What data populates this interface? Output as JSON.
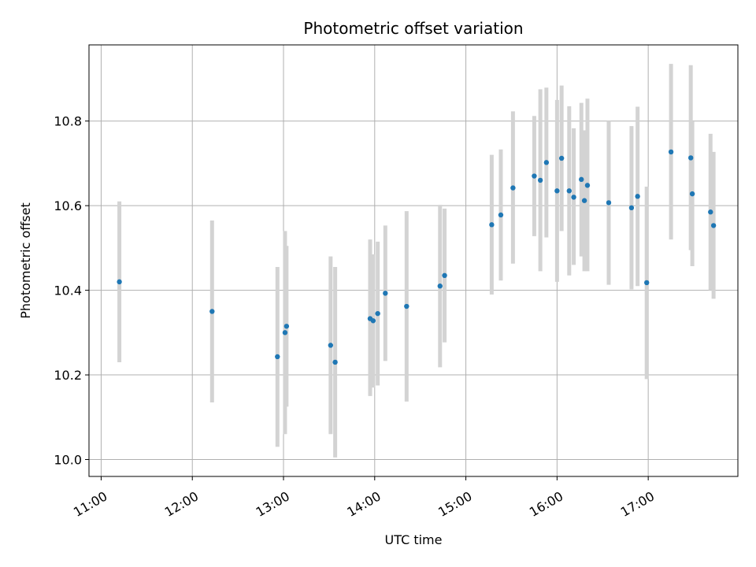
{
  "chart_data": {
    "type": "scatter",
    "title": "Photometric offset variation",
    "xlabel": "UTC time",
    "ylabel": "Photometric offset",
    "x_unit": "time of day (HH:MM, UTC)",
    "xlim": [
      "10:52",
      "17:59"
    ],
    "ylim": [
      9.96,
      10.98
    ],
    "grid": true,
    "x_ticks": [
      "11:00",
      "12:00",
      "13:00",
      "14:00",
      "15:00",
      "16:00",
      "17:00"
    ],
    "y_ticks": [
      10.0,
      10.2,
      10.4,
      10.6,
      10.8
    ],
    "y_tick_labels": [
      "10.0",
      "10.2",
      "10.4",
      "10.6",
      "10.8"
    ],
    "marker_color": "#1f77b4",
    "errorbar_color": "#d3d3d3",
    "points": [
      {
        "x": "11:12",
        "y": 10.42,
        "ylo": 10.23,
        "yhi": 10.61
      },
      {
        "x": "12:13",
        "y": 10.35,
        "ylo": 10.135,
        "yhi": 10.565
      },
      {
        "x": "12:56",
        "y": 10.243,
        "ylo": 10.03,
        "yhi": 10.455
      },
      {
        "x": "13:01",
        "y": 10.3,
        "ylo": 10.06,
        "yhi": 10.54
      },
      {
        "x": "13:02",
        "y": 10.315,
        "ylo": 10.125,
        "yhi": 10.505
      },
      {
        "x": "13:31",
        "y": 10.27,
        "ylo": 10.06,
        "yhi": 10.48
      },
      {
        "x": "13:34",
        "y": 10.23,
        "ylo": 10.005,
        "yhi": 10.455
      },
      {
        "x": "13:57",
        "y": 10.333,
        "ylo": 10.15,
        "yhi": 10.52
      },
      {
        "x": "13:59",
        "y": 10.328,
        "ylo": 10.17,
        "yhi": 10.485
      },
      {
        "x": "14:02",
        "y": 10.345,
        "ylo": 10.175,
        "yhi": 10.515
      },
      {
        "x": "14:07",
        "y": 10.393,
        "ylo": 10.233,
        "yhi": 10.553
      },
      {
        "x": "14:21",
        "y": 10.362,
        "ylo": 10.137,
        "yhi": 10.587
      },
      {
        "x": "14:43",
        "y": 10.41,
        "ylo": 10.218,
        "yhi": 10.602
      },
      {
        "x": "14:46",
        "y": 10.435,
        "ylo": 10.277,
        "yhi": 10.593
      },
      {
        "x": "15:17",
        "y": 10.555,
        "ylo": 10.39,
        "yhi": 10.72
      },
      {
        "x": "15:23",
        "y": 10.578,
        "ylo": 10.423,
        "yhi": 10.733
      },
      {
        "x": "15:31",
        "y": 10.642,
        "ylo": 10.463,
        "yhi": 10.823
      },
      {
        "x": "15:45",
        "y": 10.67,
        "ylo": 10.528,
        "yhi": 10.812
      },
      {
        "x": "15:49",
        "y": 10.66,
        "ylo": 10.445,
        "yhi": 10.875
      },
      {
        "x": "15:53",
        "y": 10.702,
        "ylo": 10.525,
        "yhi": 10.879
      },
      {
        "x": "16:00",
        "y": 10.635,
        "ylo": 10.42,
        "yhi": 10.85
      },
      {
        "x": "16:03",
        "y": 10.712,
        "ylo": 10.54,
        "yhi": 10.884
      },
      {
        "x": "16:08",
        "y": 10.635,
        "ylo": 10.435,
        "yhi": 10.835
      },
      {
        "x": "16:11",
        "y": 10.62,
        "ylo": 10.46,
        "yhi": 10.783
      },
      {
        "x": "16:16",
        "y": 10.662,
        "ylo": 10.48,
        "yhi": 10.843
      },
      {
        "x": "16:18",
        "y": 10.612,
        "ylo": 10.445,
        "yhi": 10.778
      },
      {
        "x": "16:20",
        "y": 10.648,
        "ylo": 10.445,
        "yhi": 10.853
      },
      {
        "x": "16:34",
        "y": 10.607,
        "ylo": 10.413,
        "yhi": 10.8
      },
      {
        "x": "16:49",
        "y": 10.595,
        "ylo": 10.402,
        "yhi": 10.788
      },
      {
        "x": "16:53",
        "y": 10.622,
        "ylo": 10.41,
        "yhi": 10.834
      },
      {
        "x": "16:59",
        "y": 10.418,
        "ylo": 10.19,
        "yhi": 10.645
      },
      {
        "x": "17:15",
        "y": 10.727,
        "ylo": 10.52,
        "yhi": 10.935
      },
      {
        "x": "17:28",
        "y": 10.713,
        "ylo": 10.495,
        "yhi": 10.932
      },
      {
        "x": "17:29",
        "y": 10.628,
        "ylo": 10.457,
        "yhi": 10.799
      },
      {
        "x": "17:41",
        "y": 10.585,
        "ylo": 10.4,
        "yhi": 10.77
      },
      {
        "x": "17:43",
        "y": 10.553,
        "ylo": 10.38,
        "yhi": 10.727
      }
    ]
  }
}
